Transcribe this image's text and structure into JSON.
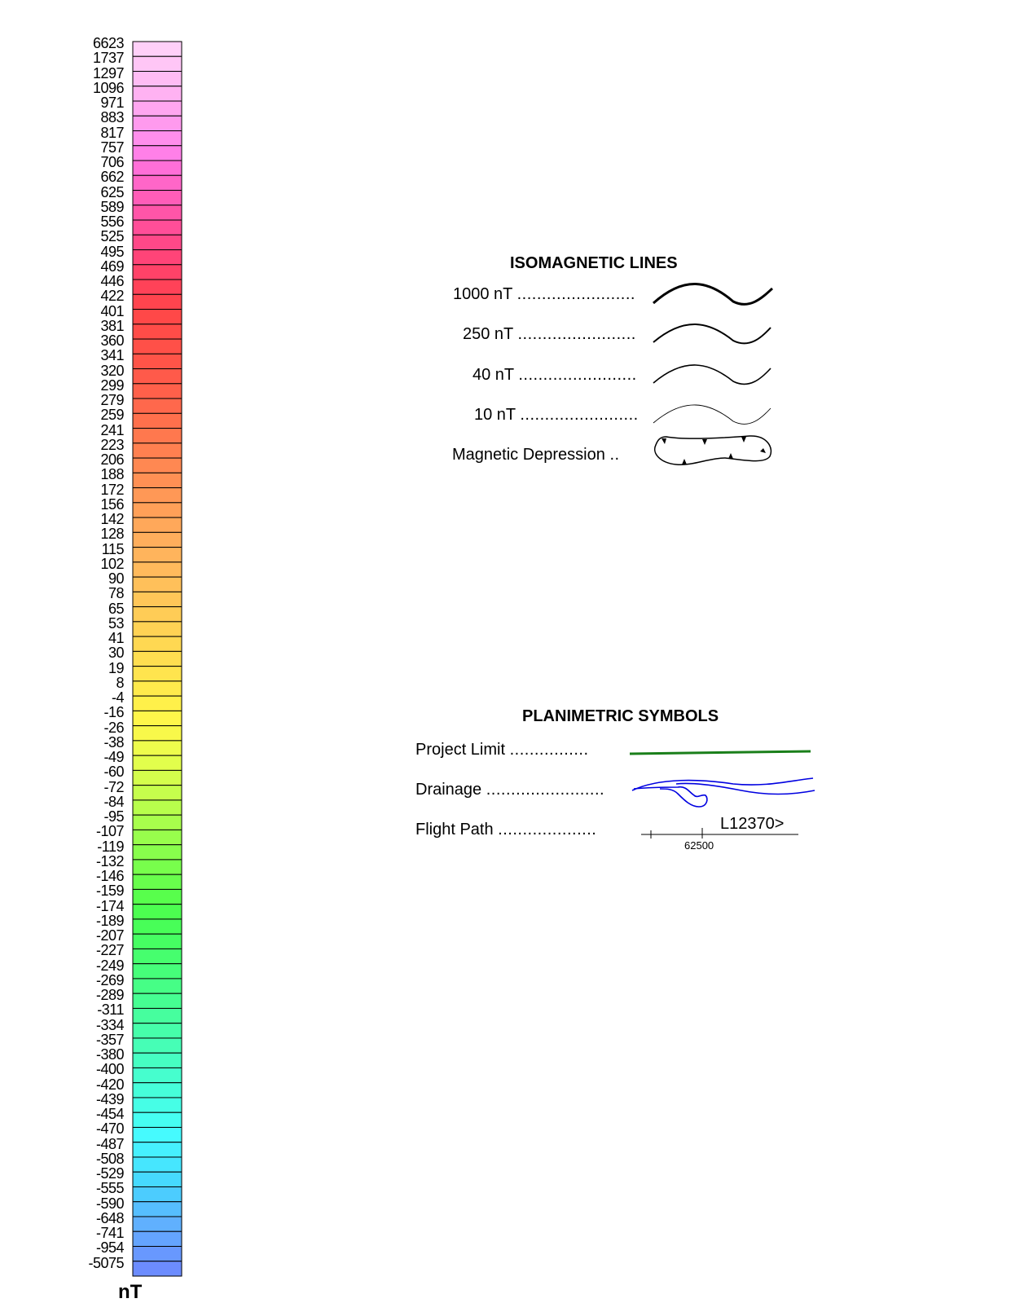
{
  "color_scale": {
    "unit": "nT",
    "values": [
      "6623",
      "1737",
      "1297",
      "1096",
      "971",
      "883",
      "817",
      "757",
      "706",
      "662",
      "625",
      "589",
      "556",
      "525",
      "495",
      "469",
      "446",
      "422",
      "401",
      "381",
      "360",
      "341",
      "320",
      "299",
      "279",
      "259",
      "241",
      "223",
      "206",
      "188",
      "172",
      "156",
      "142",
      "128",
      "115",
      "102",
      "90",
      "78",
      "65",
      "53",
      "41",
      "30",
      "19",
      "8",
      "-4",
      "-16",
      "-26",
      "-38",
      "-49",
      "-60",
      "-72",
      "-84",
      "-95",
      "-107",
      "-119",
      "-132",
      "-146",
      "-159",
      "-174",
      "-189",
      "-207",
      "-227",
      "-249",
      "-269",
      "-289",
      "-311",
      "-334",
      "-357",
      "-380",
      "-400",
      "-420",
      "-439",
      "-454",
      "-470",
      "-487",
      "-508",
      "-529",
      "-555",
      "-590",
      "-648",
      "-741",
      "-954",
      "-5075"
    ],
    "colors": [
      "#ffd0f8",
      "#ffc6f6",
      "#ffbcf4",
      "#ffb2f2",
      "#ffa6f0",
      "#ff9aee",
      "#ff8eec",
      "#ff80e8",
      "#ff6fd8",
      "#ff66c8",
      "#ff5db8",
      "#ff55a8",
      "#ff4e98",
      "#ff4888",
      "#ff4478",
      "#ff4268",
      "#ff4258",
      "#ff444e",
      "#ff4848",
      "#ff4c48",
      "#ff5048",
      "#ff5448",
      "#ff5a4a",
      "#ff604a",
      "#ff684c",
      "#ff704c",
      "#ff784e",
      "#ff8050",
      "#ff8852",
      "#ff9054",
      "#ff9856",
      "#ffa058",
      "#ffa85a",
      "#ffae5c",
      "#ffb45c",
      "#ffba5c",
      "#ffc05a",
      "#ffc658",
      "#ffcc56",
      "#ffd254",
      "#ffd852",
      "#ffde50",
      "#ffe44e",
      "#ffea4c",
      "#fff04a",
      "#fff64a",
      "#f8f84a",
      "#eefc4c",
      "#e2fe4c",
      "#d4fe4c",
      "#c6fe4c",
      "#b8fe4c",
      "#a8fe4c",
      "#98fe4c",
      "#88fe4c",
      "#78fe4c",
      "#68fe4c",
      "#58fe4c",
      "#4cfe50",
      "#48fe58",
      "#46fe62",
      "#46fe6e",
      "#46fe7a",
      "#46fe86",
      "#46fe92",
      "#46fe9e",
      "#46feaa",
      "#46feb6",
      "#46fec2",
      "#46fece",
      "#46feda",
      "#46fee6",
      "#46fef2",
      "#46fafe",
      "#46f0fe",
      "#46e6fe",
      "#46dafe",
      "#4cccfe",
      "#56befe",
      "#60b0fe",
      "#64a4fe",
      "#6898fe",
      "#6c8cfe"
    ]
  },
  "isomagnetic": {
    "title": "ISOMAGNETIC LINES",
    "items": [
      {
        "label": "1000 nT",
        "dots": "........................"
      },
      {
        "label": "250 nT",
        "dots": "........................"
      },
      {
        "label": "40 nT",
        "dots": "........................"
      },
      {
        "label": "10 nT",
        "dots": "........................"
      },
      {
        "label": "Magnetic Depression",
        "dots": ".."
      }
    ]
  },
  "planimetric": {
    "title": "PLANIMETRIC SYMBOLS",
    "items": [
      {
        "label": "Project Limit",
        "dots": "................"
      },
      {
        "label": "Drainage",
        "dots": "........................"
      },
      {
        "label": "Flight Path",
        "dots": "...................."
      }
    ],
    "flight_line": "L12370>",
    "fiducial": "62500"
  },
  "colors": {
    "project_limit": "#1a7f1a",
    "drainage": "#0000e0"
  }
}
